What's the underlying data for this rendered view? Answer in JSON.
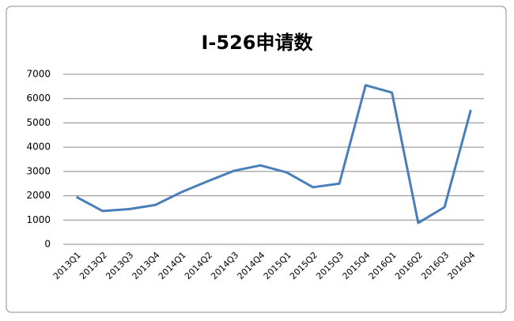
{
  "chart_data": {
    "type": "line",
    "title": "I-526申请数",
    "categories": [
      "2013Q1",
      "2013Q2",
      "2013Q3",
      "2013Q4",
      "2014Q1",
      "2014Q2",
      "2014Q3",
      "2014Q4",
      "2015Q1",
      "2015Q2",
      "2015Q3",
      "2015Q4",
      "2016Q1",
      "2016Q2",
      "2016Q3",
      "2016Q4"
    ],
    "values": [
      1950,
      1370,
      1450,
      1620,
      2150,
      2600,
      3030,
      3250,
      2960,
      2350,
      2500,
      6550,
      6250,
      880,
      1530,
      5530
    ],
    "color": "#4a7ebb",
    "ylim": [
      0,
      7000
    ],
    "yticks": [
      0,
      1000,
      2000,
      3000,
      4000,
      5000,
      6000,
      7000
    ],
    "grid": true
  }
}
